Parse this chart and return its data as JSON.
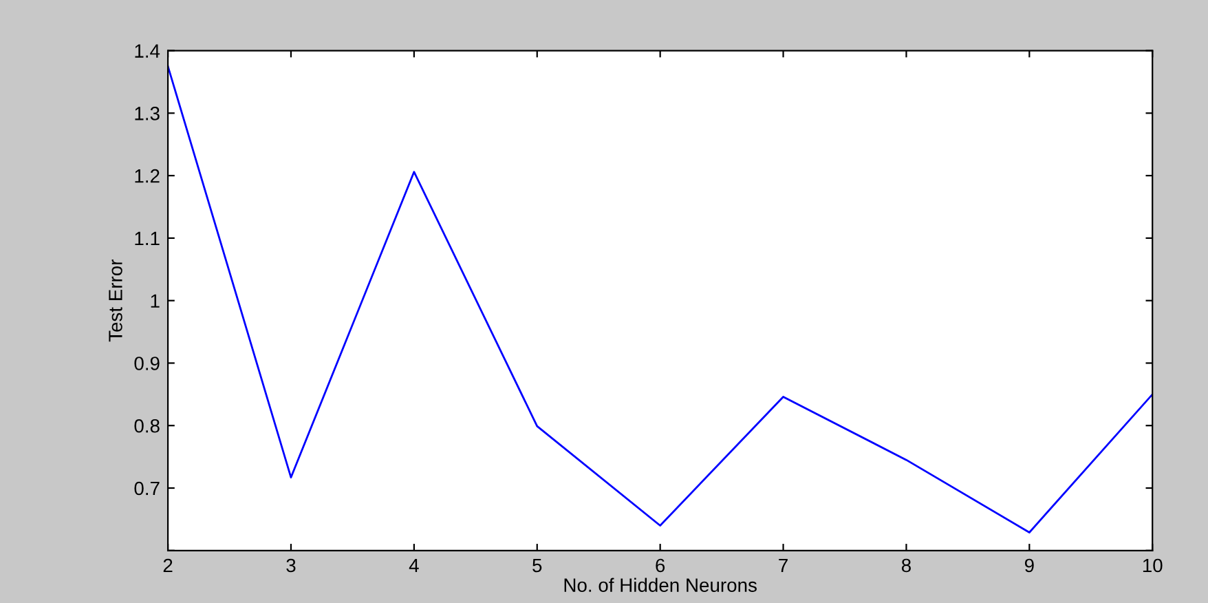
{
  "chart_data": {
    "type": "line",
    "xlabel": "No. of Hidden Neurons",
    "ylabel": "Test Error",
    "x": [
      2,
      3,
      4,
      5,
      6,
      7,
      8,
      9,
      10
    ],
    "series": [
      {
        "color": "#0000ff",
        "values": [
          1.375,
          0.717,
          1.206,
          0.799,
          0.64,
          0.846,
          0.745,
          0.629,
          0.85
        ]
      }
    ],
    "xlim": [
      2,
      10
    ],
    "xticks": [
      2,
      3,
      4,
      5,
      6,
      7,
      8,
      9,
      10
    ],
    "ylim": [
      0.6,
      1.4
    ],
    "yticks": [
      {
        "value": 0.6,
        "label": null
      },
      0.7,
      0.8,
      0.9,
      {
        "value": 1.0,
        "label": "1"
      },
      1.1,
      1.2,
      1.3,
      1.4
    ],
    "grid": false,
    "legend": false,
    "marker": "none",
    "line_style": "solid"
  }
}
